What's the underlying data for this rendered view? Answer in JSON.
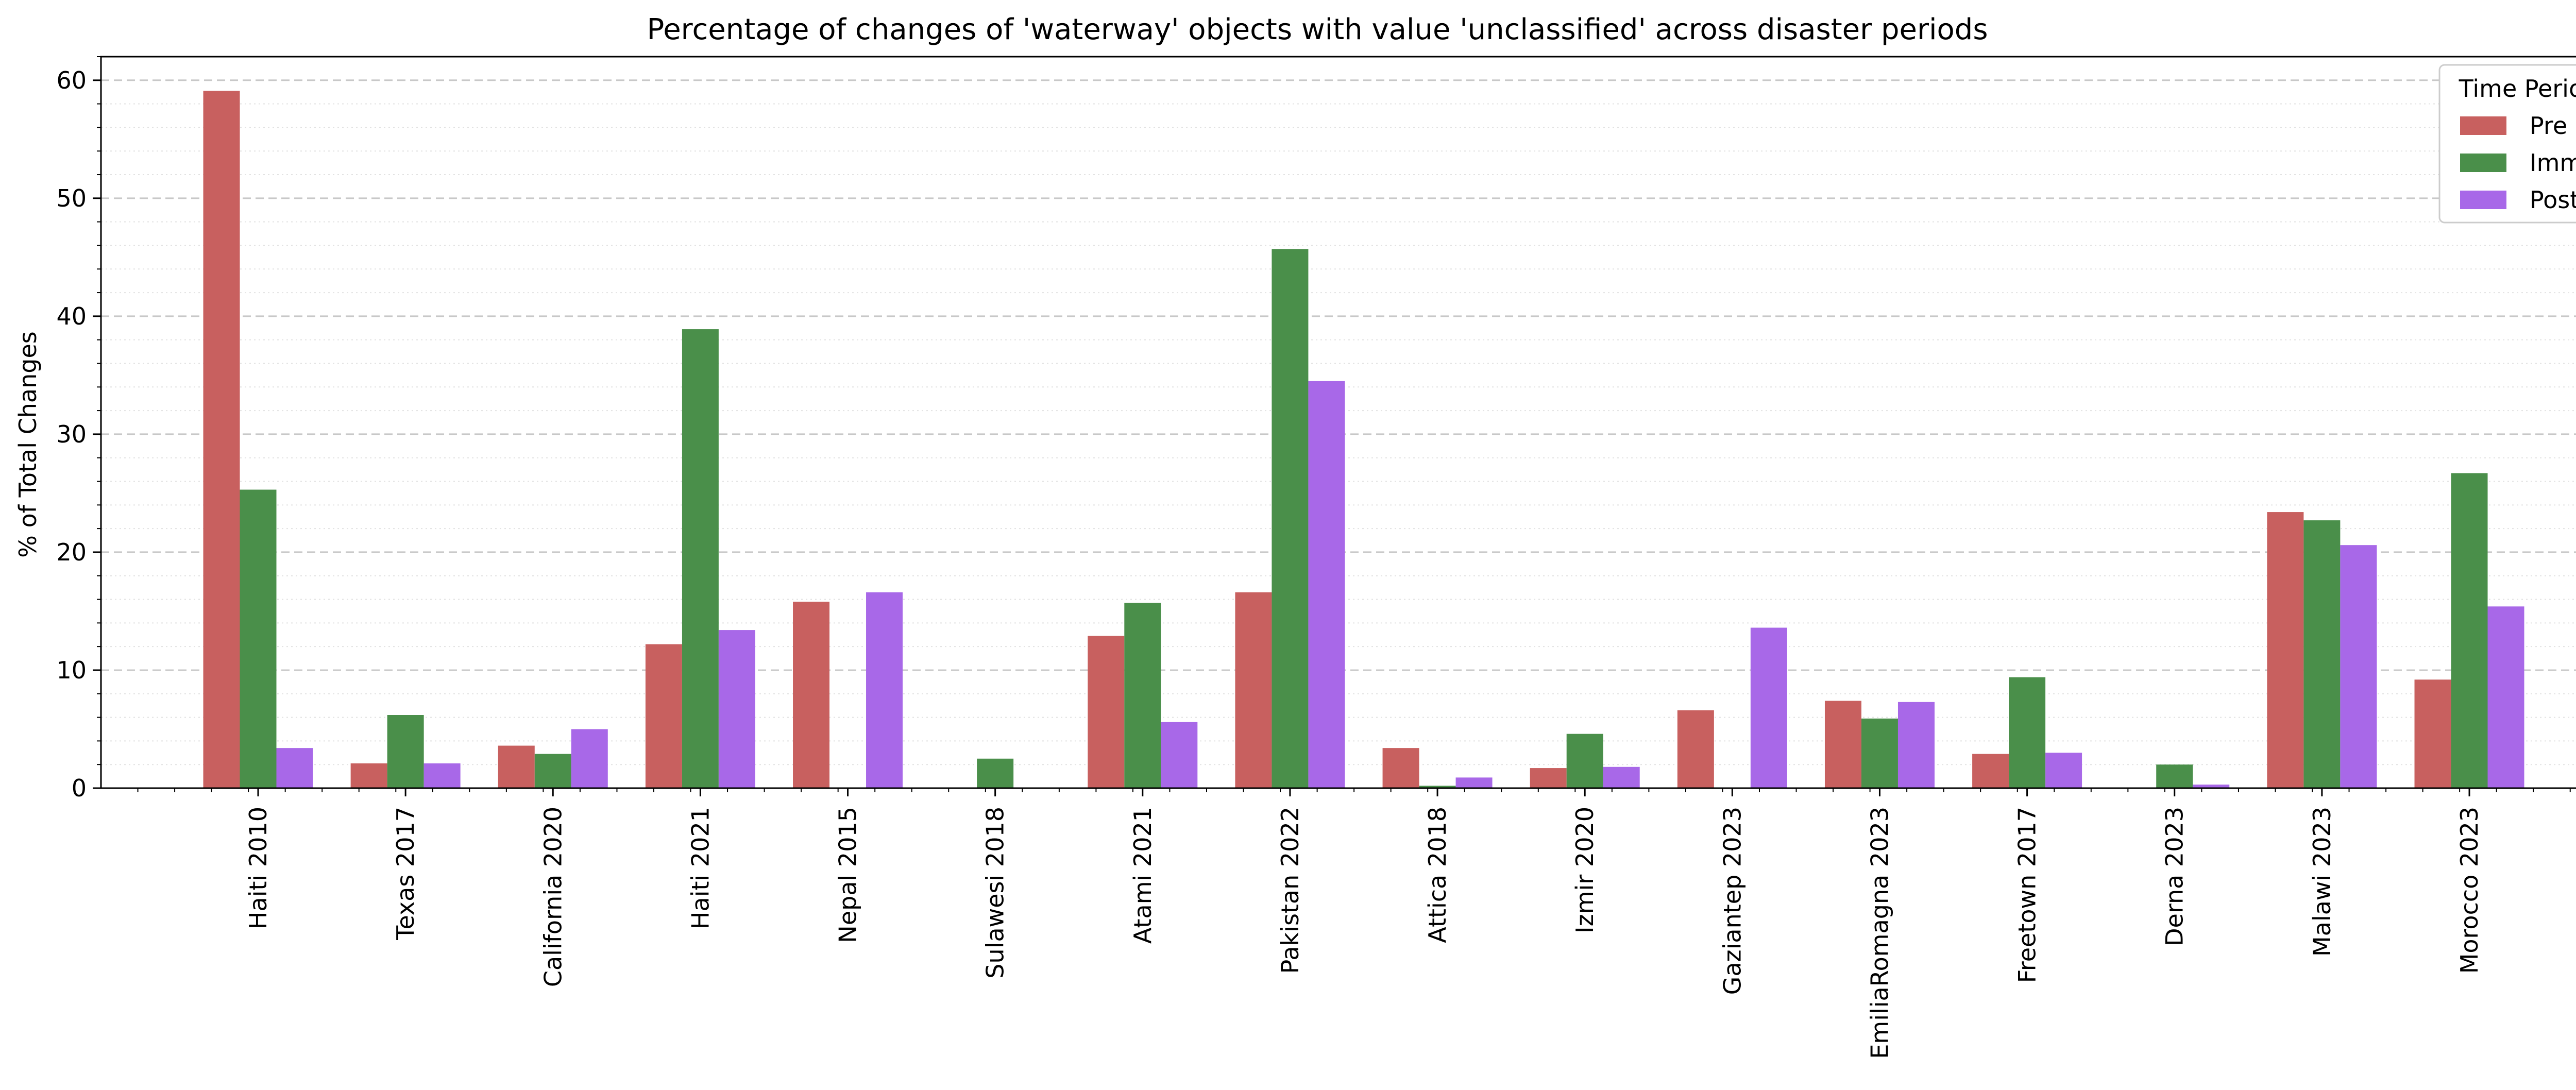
{
  "chart_data": {
    "type": "bar",
    "title": "Percentage of changes of 'waterway' objects with value 'unclassified' across disaster periods",
    "xlabel": "",
    "ylabel": "% of Total Changes",
    "ylim": [
      0,
      62
    ],
    "yticks": [
      0,
      10,
      20,
      30,
      40,
      50,
      60
    ],
    "grid": "major dashed, minor dotted (y-axis)",
    "legend": {
      "title": "Time Period",
      "placement": "top-right"
    },
    "categories": [
      "Haiti 2010",
      "Texas 2017",
      "California 2020",
      "Haiti 2021",
      "Nepal 2015",
      "Sulawesi 2018",
      "Atami 2021",
      "Pakistan 2022",
      "Attica 2018",
      "Izmir 2020",
      "Gaziantep 2023",
      "EmiliaRomagna 2023",
      "Freetown 2017",
      "Derna 2023",
      "Malawi 2023",
      "Morocco 2023"
    ],
    "series": [
      {
        "name": "Pre",
        "color": "#c8605f",
        "values": [
          59.1,
          2.1,
          3.6,
          12.2,
          15.8,
          0,
          12.9,
          16.6,
          3.4,
          1.7,
          6.6,
          7.4,
          2.9,
          0,
          23.4,
          9.2
        ]
      },
      {
        "name": "Imm",
        "color": "#4a8f4a",
        "values": [
          25.3,
          6.2,
          2.9,
          38.9,
          0,
          2.5,
          15.7,
          45.7,
          0.2,
          4.6,
          0,
          5.9,
          9.4,
          2.0,
          22.7,
          26.7
        ]
      },
      {
        "name": "Post",
        "color": "#a868e8",
        "values": [
          3.4,
          2.1,
          5.0,
          13.4,
          16.6,
          0,
          5.6,
          34.5,
          0.9,
          1.8,
          13.6,
          7.3,
          3.0,
          0.3,
          20.6,
          15.4
        ]
      }
    ]
  }
}
